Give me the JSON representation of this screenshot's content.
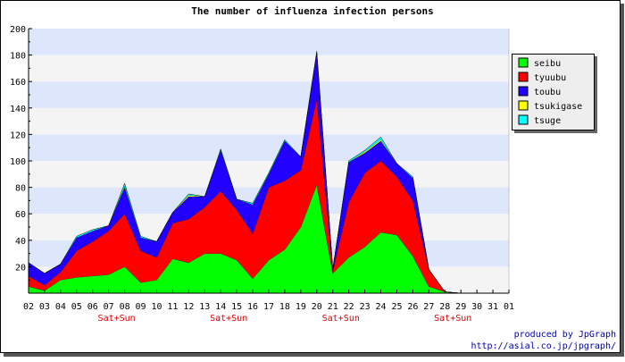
{
  "chart_data": {
    "type": "area",
    "stacked": true,
    "title": "The number of influenza infection persons",
    "xlabel": "",
    "ylabel": "",
    "ylim": [
      0,
      200
    ],
    "y_ticks": [
      20,
      40,
      60,
      80,
      100,
      120,
      140,
      160,
      180,
      200
    ],
    "grid": "horizontal bands, alternating light blue and light gray",
    "legend_position": "right",
    "x": [
      "02",
      "03",
      "04",
      "05",
      "06",
      "07",
      "08",
      "09",
      "10",
      "11",
      "12",
      "13",
      "14",
      "15",
      "16",
      "17",
      "18",
      "19",
      "20",
      "21",
      "22",
      "23",
      "24",
      "25",
      "26",
      "27",
      "28",
      "29",
      "30",
      "31",
      "01"
    ],
    "weekend_markers": [
      {
        "position": 5.5,
        "label": "Sat+Sun"
      },
      {
        "position": 12.5,
        "label": "Sat+Sun"
      },
      {
        "position": 19.5,
        "label": "Sat+Sun"
      },
      {
        "position": 26.5,
        "label": "Sat+Sun"
      }
    ],
    "series": [
      {
        "name": "seibu",
        "color": "#00ff00",
        "values": [
          5,
          2,
          10,
          12,
          13,
          14,
          20,
          8,
          10,
          26,
          23,
          30,
          30,
          25,
          11,
          25,
          33,
          50,
          82,
          15,
          27,
          35,
          46,
          44,
          28,
          5,
          1,
          0,
          0,
          0,
          0
        ]
      },
      {
        "name": "tyuubu",
        "color": "#ff0000",
        "values": [
          8,
          4,
          6,
          20,
          26,
          33,
          40,
          24,
          17,
          27,
          33,
          35,
          47,
          38,
          34,
          55,
          52,
          43,
          65,
          2,
          42,
          56,
          54,
          44,
          42,
          13,
          0,
          0,
          0,
          0,
          0
        ]
      },
      {
        "name": "toubu",
        "color": "#2200ff",
        "values": [
          10,
          9,
          6,
          10,
          8,
          4,
          20,
          10,
          12,
          8,
          17,
          8,
          31,
          8,
          22,
          10,
          30,
          10,
          34,
          1,
          30,
          15,
          15,
          10,
          17,
          0,
          0,
          0,
          0,
          0,
          0
        ]
      },
      {
        "name": "tsukigase",
        "color": "#ffff00",
        "values": [
          0,
          0,
          0,
          0,
          0,
          0,
          1,
          0,
          0,
          0,
          1,
          0,
          0,
          0,
          0,
          0,
          0,
          0,
          1,
          0,
          0,
          1,
          1,
          0,
          0,
          0,
          0,
          0,
          0,
          0,
          0
        ]
      },
      {
        "name": "tsuge",
        "color": "#00ffff",
        "values": [
          0,
          0,
          0,
          1,
          1,
          0,
          2,
          1,
          0,
          0,
          1,
          0,
          1,
          0,
          1,
          1,
          1,
          0,
          1,
          0,
          1,
          1,
          2,
          0,
          1,
          0,
          0,
          0,
          0,
          0,
          0
        ]
      }
    ]
  },
  "footer": {
    "credit_line1": "produced by JpGraph",
    "credit_line2": "http://asial.co.jp/jpgraph/"
  }
}
